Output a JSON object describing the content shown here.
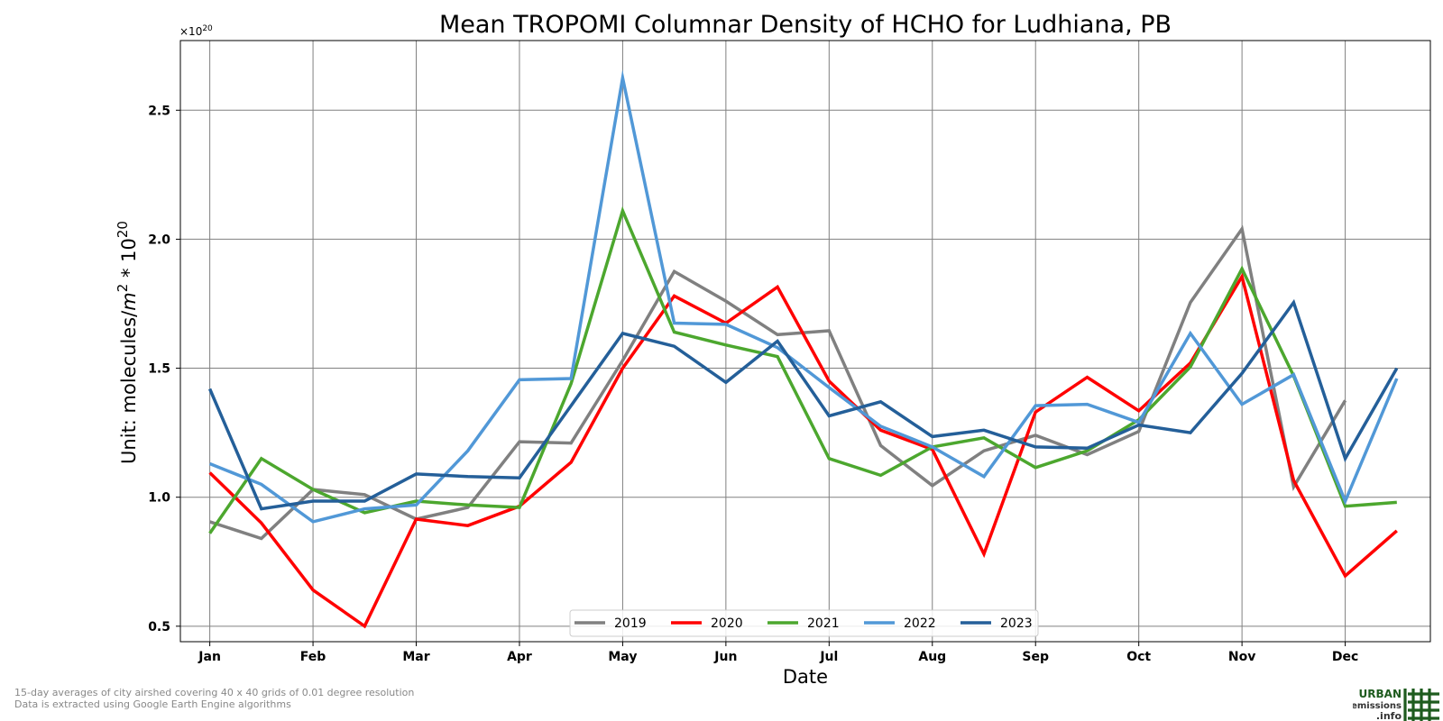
{
  "chart_data": {
    "type": "line",
    "title": "Mean TROPOMI Columnar Density of HCHO for Ludhiana, PB",
    "xlabel": "Date",
    "ylabel_text": "Unit: molecules/",
    "ylabel_unit": "m",
    "ylabel_sup": "2",
    "ylabel_mid": " * 10",
    "ylabel_exp": "20",
    "offset_text": "×10",
    "offset_exp": "20",
    "x_ticks": [
      "Jan",
      "Feb",
      "Mar",
      "Apr",
      "May",
      "Jun",
      "Jul",
      "Aug",
      "Sep",
      "Oct",
      "Nov",
      "Dec"
    ],
    "y_ticks": [
      "0.5",
      "1.0",
      "1.5",
      "2.0",
      "2.5"
    ],
    "y_tick_values": [
      0.5,
      1.0,
      1.5,
      2.0,
      2.5
    ],
    "ylim": [
      0.44,
      2.77
    ],
    "xlim": [
      -0.57,
      23.65
    ],
    "grid": true,
    "legend_position": "bottom-center",
    "series": [
      {
        "name": "2019",
        "color": "#808080",
        "values": [
          0.905,
          0.84,
          1.03,
          1.01,
          0.915,
          0.96,
          1.215,
          1.21,
          1.53,
          1.875,
          1.76,
          1.63,
          1.645,
          1.2,
          1.045,
          1.18,
          1.24,
          1.165,
          1.255,
          1.755,
          2.04,
          1.04,
          1.375
        ]
      },
      {
        "name": "2020",
        "color": "#ff0000",
        "values": [
          1.095,
          0.9,
          0.64,
          0.5,
          0.915,
          0.89,
          0.965,
          1.135,
          1.5,
          1.78,
          1.675,
          1.815,
          1.45,
          1.26,
          1.185,
          0.78,
          1.33,
          1.465,
          1.335,
          1.52,
          1.855,
          1.065,
          0.695,
          0.87
        ]
      },
      {
        "name": "2021",
        "color": "#4ca72e",
        "values": [
          0.86,
          1.15,
          1.03,
          0.94,
          0.985,
          0.97,
          0.96,
          1.44,
          2.11,
          1.64,
          1.59,
          1.545,
          1.15,
          1.085,
          1.195,
          1.23,
          1.115,
          1.18,
          1.3,
          1.505,
          1.885,
          1.47,
          0.965,
          0.98
        ]
      },
      {
        "name": "2022",
        "color": "#5198d7",
        "values": [
          1.13,
          1.05,
          0.905,
          0.955,
          0.97,
          1.18,
          1.455,
          1.46,
          2.625,
          1.675,
          1.67,
          1.58,
          1.425,
          1.275,
          1.195,
          1.08,
          1.355,
          1.36,
          1.29,
          1.635,
          1.36,
          1.475,
          0.985,
          1.46
        ]
      },
      {
        "name": "2023",
        "color": "#245f99",
        "values": [
          1.42,
          0.955,
          0.985,
          0.985,
          1.09,
          1.08,
          1.075,
          1.355,
          1.635,
          1.585,
          1.445,
          1.605,
          1.315,
          1.37,
          1.235,
          1.26,
          1.195,
          1.19,
          1.28,
          1.25,
          1.48,
          1.755,
          1.15,
          1.5
        ]
      }
    ],
    "footnotes": [
      "15-day averages of city airshed covering 40 x 40 grids of 0.01 degree resolution",
      "Data is extracted using Google Earth Engine algorithms"
    ]
  },
  "logo": {
    "line1": "URBAN",
    "line2": "emissions",
    "line3": ".info",
    "color": "#1e5b1e"
  }
}
